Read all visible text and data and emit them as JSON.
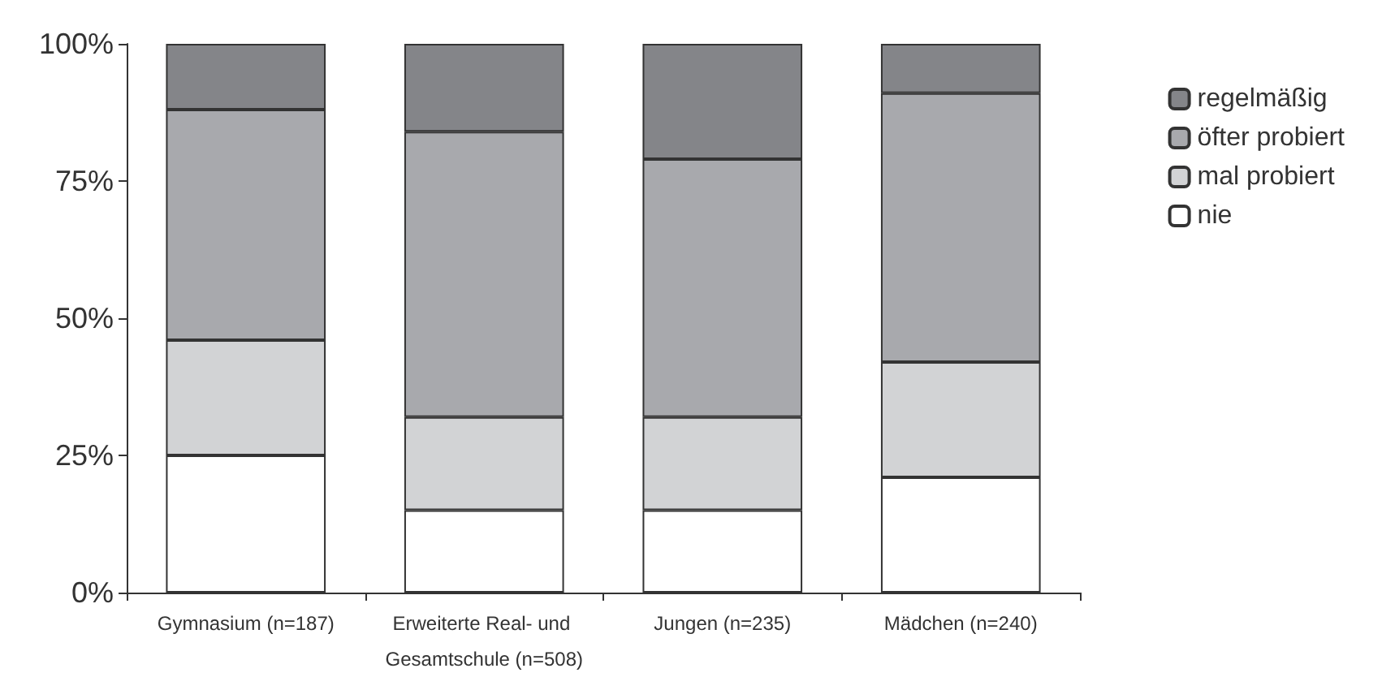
{
  "chart_data": {
    "type": "bar",
    "stacked": true,
    "categories": [
      "Gymnasium (n=187)",
      "Erweiterte Real- und Gesamtschule (n=508)",
      "Jungen (n=235)",
      "Mädchen (n=240)"
    ],
    "series": [
      {
        "name": "nie",
        "color": "#ffffff",
        "values": [
          25,
          15,
          15,
          21
        ]
      },
      {
        "name": "mal probiert",
        "color": "#d2d3d5",
        "values": [
          21,
          17,
          17,
          21
        ]
      },
      {
        "name": "öfter probiert",
        "color": "#a8a9ad",
        "values": [
          42,
          52,
          47,
          49
        ]
      },
      {
        "name": "regelmäßig",
        "color": "#848589",
        "values": [
          12,
          16,
          21,
          9
        ]
      }
    ],
    "ylim": [
      0,
      100
    ],
    "yticks": [
      {
        "value": 0,
        "label": "0%"
      },
      {
        "value": 25,
        "label": "25%"
      },
      {
        "value": 50,
        "label": "50%"
      },
      {
        "value": 75,
        "label": "75%"
      },
      {
        "value": 100,
        "label": "100%"
      }
    ],
    "grid": false,
    "legend": "right"
  }
}
